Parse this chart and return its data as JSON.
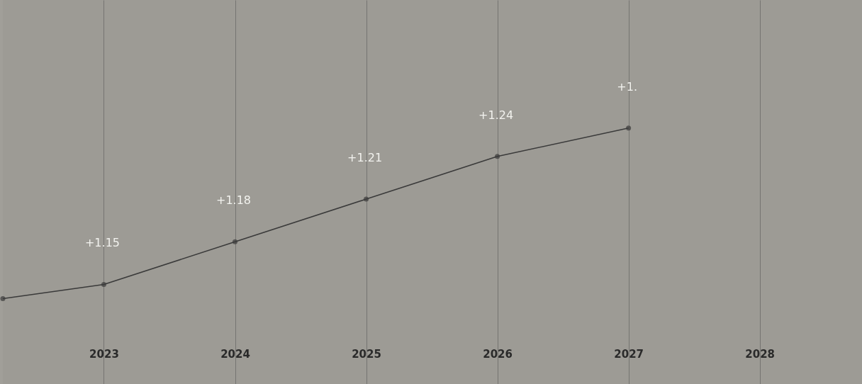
{
  "chart_data": {
    "type": "line",
    "x": [
      2022.23,
      2023,
      2024,
      2025,
      2026,
      2027
    ],
    "series": [
      {
        "color": "#3a3a3a",
        "values": [
          1.14,
          1.15,
          1.18,
          1.21,
          1.24,
          1.26
        ],
        "value_labels": [
          null,
          "+1.15",
          "+1.18",
          "+1.21",
          "+1.24",
          "+1."
        ]
      }
    ],
    "xlim": [
      2022.23,
      2028.78
    ],
    "xticks": [
      2023,
      2024,
      2025,
      2026,
      2027,
      2028
    ],
    "ylim": [
      1.08,
      1.35
    ],
    "tick_labels": "x",
    "grid": "x",
    "marker": "circle",
    "line_style": "solid"
  }
}
